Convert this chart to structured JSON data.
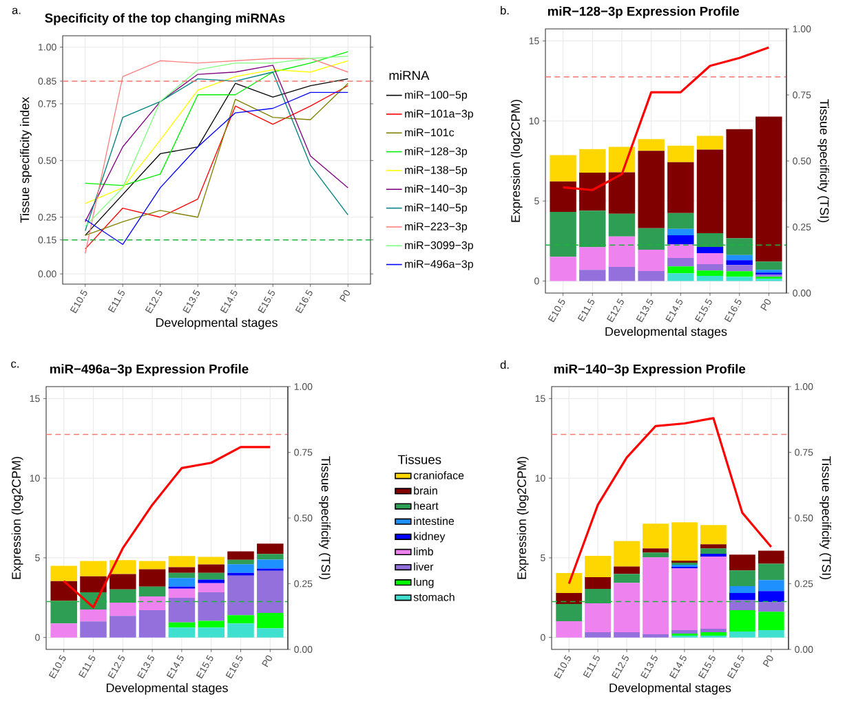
{
  "chart_data": [
    {
      "type": "line",
      "title": "Specificity of the top changing miRNAs",
      "xlabel": "Developmental stages",
      "ylabel": "Tissue specificity index",
      "legend_title": "miRNA",
      "annotations": [
        "a."
      ],
      "categories": [
        "E10.5",
        "E11.5",
        "E12.5",
        "E13.5",
        "E14.5",
        "E15.5",
        "E16.5",
        "P0"
      ],
      "series": [
        {
          "name": "miR−100−5p",
          "color": "#000000",
          "values": [
            0.17,
            0.35,
            0.53,
            0.56,
            0.84,
            0.78,
            0.83,
            0.86
          ]
        },
        {
          "name": "miR−101a−3p",
          "color": "#FF0000",
          "values": [
            0.11,
            0.29,
            0.25,
            0.33,
            0.74,
            0.66,
            0.74,
            0.83
          ]
        },
        {
          "name": "miR−101c",
          "color": "#808000",
          "values": [
            0.17,
            0.23,
            0.28,
            0.25,
            0.77,
            0.69,
            0.68,
            0.84
          ]
        },
        {
          "name": "miR−128−3p",
          "color": "#00EE00",
          "values": [
            0.4,
            0.39,
            0.44,
            0.79,
            0.79,
            0.89,
            0.93,
            0.98
          ]
        },
        {
          "name": "miR−138−5p",
          "color": "#FFFF00",
          "values": [
            0.31,
            0.38,
            0.59,
            0.81,
            0.87,
            0.9,
            0.89,
            0.94
          ]
        },
        {
          "name": "miR−140−3p",
          "color": "#800080",
          "values": [
            0.23,
            0.56,
            0.76,
            0.88,
            0.89,
            0.92,
            0.52,
            0.38
          ]
        },
        {
          "name": "miR−140−5p",
          "color": "#008080",
          "values": [
            0.19,
            0.69,
            0.76,
            0.86,
            0.85,
            0.89,
            0.48,
            0.26
          ]
        },
        {
          "name": "miR−223−3p",
          "color": "#FF8080",
          "values": [
            0.09,
            0.87,
            0.94,
            0.93,
            0.94,
            0.95,
            0.95,
            0.89
          ]
        },
        {
          "name": "miR−3099−3p",
          "color": "#80FF80",
          "values": [
            0.21,
            0.38,
            0.76,
            0.9,
            0.93,
            0.93,
            0.95,
            0.96
          ]
        },
        {
          "name": "miR−496a−3p",
          "color": "#0000FF",
          "values": [
            0.24,
            0.13,
            0.38,
            0.56,
            0.71,
            0.73,
            0.8,
            0.8
          ]
        }
      ],
      "ylim": [
        -0.045,
        1.05
      ],
      "yticks": [
        {
          "value": 0,
          "label": "0.00"
        },
        {
          "value": 0.15,
          "label": "0.15"
        },
        {
          "value": 0.25,
          "label": "0.25"
        },
        {
          "value": 0.5,
          "label": "0.50"
        },
        {
          "value": 0.75,
          "label": "0.75"
        },
        {
          "value": 0.85,
          "label": "0.85"
        },
        {
          "value": 1,
          "label": "1.00"
        }
      ],
      "ref_lines": [
        {
          "axis": "y",
          "value": 0.85,
          "color": "#F8766D",
          "line_style": "dashed"
        },
        {
          "axis": "y",
          "value": 0.15,
          "color": "#1DB33A",
          "line_style": "dashed"
        }
      ],
      "grid": true,
      "legend": "right"
    },
    {
      "type": "bar",
      "stacked": true,
      "title": "miR−128−3p Expression Profile",
      "xlabel": "Developmental stages",
      "ylabel": "Expression (log2CPM)",
      "y2label": "Tissue specificity (TSI)",
      "annotations": [
        "b."
      ],
      "categories": [
        "E10.5",
        "E11.5",
        "E12.5",
        "E13.5",
        "E14.5",
        "E15.5",
        "E16.5",
        "P0"
      ],
      "series": [
        {
          "color": "#40E0D0",
          "values": [
            null,
            null,
            null,
            null,
            0.49,
            0.32,
            0.27,
            0.14
          ]
        },
        {
          "color": "#00FF00",
          "values": [
            null,
            null,
            null,
            null,
            0.43,
            0.34,
            0.34,
            0.13
          ]
        },
        {
          "color": "#9370DB",
          "values": [
            null,
            0.7,
            0.88,
            0.62,
            0.52,
            0.39,
            0.39,
            0.13
          ]
        },
        {
          "color": "#EE82EE",
          "values": [
            1.52,
            1.42,
            1.9,
            1.34,
            0.86,
            0.69,
            null,
            null
          ]
        },
        {
          "color": "#0000FF",
          "values": [
            null,
            null,
            null,
            null,
            0.56,
            0.39,
            0.3,
            0.13
          ]
        },
        {
          "color": "#1E90FF",
          "values": [
            null,
            null,
            null,
            null,
            0.4,
            null,
            0.32,
            0.17
          ]
        },
        {
          "color": "#2E9E55",
          "values": [
            2.8,
            2.28,
            1.42,
            1.34,
            0.98,
            0.86,
            1.06,
            0.52
          ]
        },
        {
          "color": "#800000",
          "values": [
            1.9,
            2.37,
            2.59,
            4.83,
            3.19,
            5.22,
            6.81,
            9.05
          ]
        },
        {
          "color": "#FFD700",
          "values": [
            1.64,
            1.47,
            1.59,
            0.73,
            1.03,
            0.86,
            null,
            null
          ]
        },
        {
          "type": "line",
          "axis": "y2",
          "color": "#FF0000",
          "values": [
            0.4,
            0.39,
            0.45,
            0.76,
            0.76,
            0.86,
            0.89,
            0.93
          ]
        }
      ],
      "ylim": [
        -0.75,
        15.75
      ],
      "yticks": [
        0,
        5,
        10,
        15
      ],
      "y2lim": [
        0,
        1
      ],
      "y2ticks": [
        {
          "value": 0,
          "label": "0.00"
        },
        {
          "value": 0.25,
          "label": "0.25"
        },
        {
          "value": 0.5,
          "label": "0.50"
        },
        {
          "value": 0.75,
          "label": "0.75"
        },
        {
          "value": 1,
          "label": "1.00"
        }
      ],
      "ref_lines": [
        {
          "axis": "y",
          "value": 12.75,
          "color": "#F8766D",
          "line_style": "dashed"
        },
        {
          "axis": "y",
          "value": 2.25,
          "color": "#1DB33A",
          "line_style": "dashed"
        }
      ],
      "grid": true
    },
    {
      "type": "bar",
      "stacked": true,
      "title": "miR−496a−3p Expression Profile",
      "xlabel": "Developmental stages",
      "ylabel": "Expression (log2CPM)",
      "y2label": "Tissue specificity (TSI)",
      "legend_title": "Tissues",
      "annotations": [
        "c."
      ],
      "categories": [
        "E10.5",
        "E11.5",
        "E12.5",
        "E13.5",
        "E14.5",
        "E15.5",
        "E16.5",
        "P0"
      ],
      "series": [
        {
          "name": "stomach",
          "color": "#40E0D0",
          "values": [
            null,
            null,
            null,
            null,
            0.62,
            0.62,
            0.88,
            0.58
          ]
        },
        {
          "name": "lung",
          "color": "#00FF00",
          "values": [
            null,
            null,
            null,
            null,
            0.33,
            0.42,
            0.52,
            0.96
          ]
        },
        {
          "name": "liver",
          "color": "#9370DB",
          "values": [
            null,
            1.01,
            1.36,
            1.71,
            1.54,
            1.8,
            2.48,
            2.65
          ]
        },
        {
          "name": "limb",
          "color": "#EE82EE",
          "values": [
            0.88,
            0.74,
            0.83,
            0.87,
            0.57,
            0.57,
            null,
            null
          ]
        },
        {
          "name": "kidney",
          "color": "#0000FF",
          "values": [
            null,
            null,
            null,
            null,
            0.13,
            0.22,
            0.17,
            0.13
          ]
        },
        {
          "name": "intestine",
          "color": "#1E90FF",
          "values": [
            null,
            null,
            null,
            null,
            0.54,
            null,
            0.55,
            0.57
          ]
        },
        {
          "name": "heart",
          "color": "#2E9E55",
          "values": [
            1.41,
            1.09,
            0.83,
            0.61,
            0.33,
            0.43,
            0.28,
            0.35
          ]
        },
        {
          "name": "brain",
          "color": "#800000",
          "values": [
            1.25,
            1.0,
            0.96,
            1.09,
            0.35,
            0.52,
            0.52,
            0.65
          ]
        },
        {
          "name": "cranioface",
          "color": "#FFD700",
          "values": [
            0.96,
            0.96,
            0.87,
            0.52,
            0.7,
            0.48,
            null,
            null
          ]
        },
        {
          "type": "line",
          "axis": "y2",
          "color": "#FF0000",
          "values": [
            0.26,
            0.16,
            0.385,
            0.55,
            0.69,
            0.71,
            0.77,
            0.77
          ]
        }
      ],
      "ylim": [
        -0.75,
        15.75
      ],
      "yticks": [
        0,
        5,
        10,
        15
      ],
      "y2lim": [
        0,
        1
      ],
      "y2ticks": [
        {
          "value": 0,
          "label": "0.00"
        },
        {
          "value": 0.25,
          "label": "0.25"
        },
        {
          "value": 0.5,
          "label": "0.50"
        },
        {
          "value": 0.75,
          "label": "0.75"
        },
        {
          "value": 1,
          "label": "1.00"
        }
      ],
      "ref_lines": [
        {
          "axis": "y",
          "value": 12.75,
          "color": "#F8766D",
          "line_style": "dashed"
        },
        {
          "axis": "y",
          "value": 2.25,
          "color": "#1DB33A",
          "line_style": "dashed"
        }
      ],
      "grid": true,
      "legend": "right"
    },
    {
      "type": "bar",
      "stacked": true,
      "title": "miR−140−3p Expression Profile",
      "xlabel": "Developmental stages",
      "ylabel": "Expression (log2CPM)",
      "y2label": "Tissue specificity (TSI)",
      "annotations": [
        "d."
      ],
      "categories": [
        "E10.5",
        "E11.5",
        "E12.5",
        "E13.5",
        "E14.5",
        "E15.5",
        "E16.5",
        "P0"
      ],
      "series": [
        {
          "color": "#40E0D0",
          "values": [
            null,
            null,
            null,
            null,
            0.11,
            0.11,
            0.37,
            0.46
          ]
        },
        {
          "color": "#00FF00",
          "values": [
            null,
            null,
            null,
            null,
            0.13,
            0.22,
            1.34,
            1.16
          ]
        },
        {
          "color": "#9370DB",
          "values": [
            null,
            0.33,
            0.33,
            0.2,
            0.22,
            0.22,
            0.65,
            0.6
          ]
        },
        {
          "color": "#EE82EE",
          "values": [
            1.02,
            1.81,
            3.1,
            4.83,
            3.88,
            4.53,
            null,
            null
          ]
        },
        {
          "color": "#0000FF",
          "values": [
            null,
            null,
            null,
            null,
            0.09,
            0.17,
            0.43,
            0.69
          ]
        },
        {
          "color": "#1E90FF",
          "values": [
            null,
            null,
            null,
            null,
            0.13,
            null,
            0.43,
            0.69
          ]
        },
        {
          "color": "#2E9E55",
          "values": [
            1.08,
            0.91,
            0.56,
            0.3,
            0.13,
            0.34,
            0.99,
            1.03
          ]
        },
        {
          "color": "#800000",
          "values": [
            0.69,
            0.73,
            0.47,
            0.26,
            0.13,
            0.26,
            0.99,
            0.82
          ]
        },
        {
          "color": "#FFD700",
          "values": [
            1.25,
            1.34,
            1.59,
            1.55,
            2.41,
            1.21,
            null,
            null
          ]
        },
        {
          "type": "line",
          "axis": "y2",
          "color": "#FF0000",
          "values": [
            0.25,
            0.55,
            0.73,
            0.85,
            0.86,
            0.88,
            0.52,
            0.39
          ]
        }
      ],
      "ylim": [
        -0.75,
        15.75
      ],
      "yticks": [
        0,
        5,
        10,
        15
      ],
      "y2lim": [
        0,
        1
      ],
      "y2ticks": [
        {
          "value": 0,
          "label": "0.00"
        },
        {
          "value": 0.25,
          "label": "0.25"
        },
        {
          "value": 0.5,
          "label": "0.50"
        },
        {
          "value": 0.75,
          "label": "0.75"
        },
        {
          "value": 1,
          "label": "1.00"
        }
      ],
      "ref_lines": [
        {
          "axis": "y",
          "value": 12.75,
          "color": "#F8766D",
          "line_style": "dashed"
        },
        {
          "axis": "y",
          "value": 2.25,
          "color": "#1DB33A",
          "line_style": "dashed"
        }
      ],
      "grid": true
    }
  ]
}
